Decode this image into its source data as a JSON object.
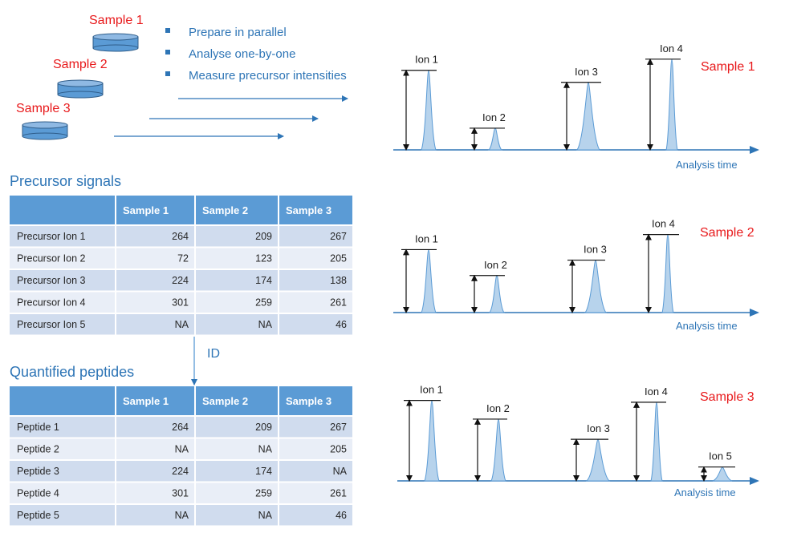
{
  "samples": [
    "Sample 1",
    "Sample 2",
    "Sample 3"
  ],
  "bullets": [
    "Prepare in parallel",
    "Analyse one-by-one",
    "Measure precursor intensities"
  ],
  "sections": {
    "precursor_title": "Precursor  signals",
    "quantified_title": "Quantified  peptides",
    "id_label": "ID"
  },
  "precursor_table": {
    "headers": [
      "",
      "Sample 1",
      "Sample 2",
      "Sample 3"
    ],
    "rows": [
      [
        "Precursor Ion 1",
        "264",
        "209",
        "267"
      ],
      [
        "Precursor Ion 2",
        "72",
        "123",
        "205"
      ],
      [
        "Precursor Ion 3",
        "224",
        "174",
        "138"
      ],
      [
        "Precursor Ion 4",
        "301",
        "259",
        "261"
      ],
      [
        "Precursor Ion 5",
        "NA",
        "NA",
        "46"
      ]
    ]
  },
  "peptide_table": {
    "headers": [
      "",
      "Sample 1",
      "Sample 2",
      "Sample 3"
    ],
    "rows": [
      [
        "Peptide 1",
        "264",
        "209",
        "267"
      ],
      [
        "Peptide 2",
        "NA",
        "NA",
        "205"
      ],
      [
        "Peptide 3",
        "224",
        "174",
        "NA"
      ],
      [
        "Peptide 4",
        "301",
        "259",
        "261"
      ],
      [
        "Peptide 5",
        "NA",
        "NA",
        "46"
      ]
    ]
  },
  "chromatograms": [
    {
      "sample": "Sample 1",
      "axis_label": "Analysis time",
      "ions": [
        "Ion 1",
        "Ion 2",
        "Ion 3",
        "Ion 4"
      ],
      "intensities": [
        264,
        72,
        224,
        301
      ]
    },
    {
      "sample": "Sample 2",
      "axis_label": "Analysis time",
      "ions": [
        "Ion 1",
        "Ion 2",
        "Ion 3",
        "Ion 4"
      ],
      "intensities": [
        209,
        123,
        174,
        259
      ]
    },
    {
      "sample": "Sample 3",
      "axis_label": "Analysis time",
      "ions": [
        "Ion 1",
        "Ion 2",
        "Ion 3",
        "Ion 4",
        "Ion 5"
      ],
      "intensities": [
        267,
        205,
        138,
        261,
        46
      ]
    }
  ],
  "colors": {
    "accent_blue": "#2e75b6",
    "sample_red": "#e8191b",
    "table_header": "#5b9bd5",
    "row_dark": "#d0dcee",
    "row_light": "#e9eef7",
    "peak_fill": "#b7d3ec"
  }
}
